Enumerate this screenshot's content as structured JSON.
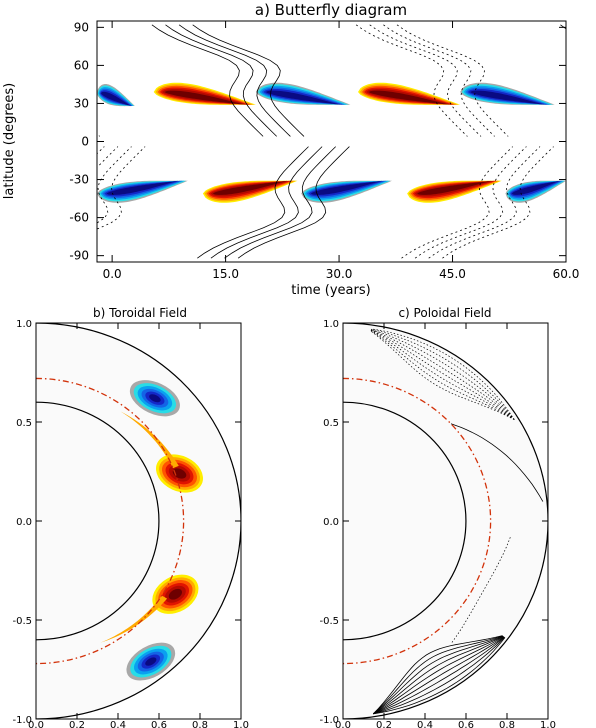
{
  "chart_data": [
    {
      "type": "heatmap",
      "title": "a) Butterfly diagram",
      "xlabel": "time (years)",
      "ylabel": "latitude (degrees)",
      "xlim": [
        -2,
        60
      ],
      "ylim": [
        -95,
        95
      ],
      "x_ticks": [
        0,
        15,
        30,
        45,
        60
      ],
      "x_tick_labels": [
        "0.0",
        "15.0",
        "30.0",
        "45.0",
        "60.0"
      ],
      "y_ticks": [
        90,
        60,
        30,
        0,
        -30,
        -60,
        -90
      ],
      "y_tick_labels": [
        "90",
        "60",
        "30",
        "0",
        "-30",
        "-60",
        "-90"
      ],
      "cycle_period_years": 27,
      "wings": [
        {
          "sign": "positive",
          "lat_center": 33,
          "t_start": 5.5,
          "t_end": 19,
          "t_peak": 10
        },
        {
          "sign": "positive",
          "lat_center": 33,
          "t_start": 32.5,
          "t_end": 46,
          "t_peak": 37
        },
        {
          "sign": "negative",
          "lat_center": 32,
          "t_start": -2,
          "t_end": 3,
          "t_peak": -3
        },
        {
          "sign": "negative",
          "lat_center": 33,
          "t_start": 19,
          "t_end": 31.5,
          "t_peak": 23.5
        },
        {
          "sign": "negative",
          "lat_center": 33,
          "t_start": 46,
          "t_end": 58.5,
          "t_peak": 50.5
        },
        {
          "sign": "negative",
          "lat_center": -35,
          "t_start": -2,
          "t_end": 10,
          "t_peak": 1.5
        },
        {
          "sign": "negative",
          "lat_center": -35,
          "t_start": 25,
          "t_end": 37,
          "t_peak": 28.5
        },
        {
          "sign": "negative",
          "lat_center": -35,
          "t_start": 52,
          "t_end": 60,
          "t_peak": 55.5
        },
        {
          "sign": "positive",
          "lat_center": -35,
          "t_start": 12,
          "t_end": 24.5,
          "t_peak": 16
        },
        {
          "sign": "positive",
          "lat_center": -35,
          "t_start": 39,
          "t_end": 51.5,
          "t_peak": 43
        }
      ]
    },
    {
      "type": "heatmap",
      "title": "b) Toroidal Field",
      "xlim": [
        0,
        1
      ],
      "ylim": [
        -1,
        1
      ],
      "x_tick_labels": [
        "0.0",
        "0.2",
        "0.4",
        "0.6",
        "0.8",
        "1.0"
      ],
      "y_tick_labels": [
        "1.0",
        "0.5",
        "0.0",
        "-0.5",
        "-1.0"
      ],
      "outer_radius": 1.0,
      "inner_radius": 0.6,
      "tachocline_radius": 0.72,
      "regions": [
        {
          "sign": "negative",
          "x": 0.58,
          "y": 0.62
        },
        {
          "sign": "positive",
          "x": 0.7,
          "y": 0.24
        },
        {
          "sign": "positive",
          "x": 0.68,
          "y": -0.37
        },
        {
          "sign": "negative",
          "x": 0.56,
          "y": -0.71
        }
      ]
    },
    {
      "type": "heatmap",
      "title": "c) Poloidal Field",
      "xlim": [
        0,
        1
      ],
      "ylim": [
        -1,
        1
      ],
      "x_tick_labels": [
        "0.0",
        "0.2",
        "0.4",
        "0.6",
        "0.8",
        "1.0"
      ],
      "y_tick_labels": [
        "1.0",
        "0.5",
        "0.0",
        "-0.5",
        "-1.0"
      ],
      "outer_radius": 1.0,
      "inner_radius": 0.6,
      "tachocline_radius": 0.72
    }
  ],
  "colors": {
    "pos": [
      "#ffee00",
      "#ffaa00",
      "#ff5500",
      "#e01400",
      "#b40a00",
      "#6e0000"
    ],
    "neg": [
      "#a8a8a8",
      "#28dce6",
      "#0aa0f0",
      "#1464e6",
      "#1428c8",
      "#0a0a82"
    ],
    "background_disk": "#fafafa",
    "tachocline": "#d2320a",
    "contour": "#000000"
  }
}
